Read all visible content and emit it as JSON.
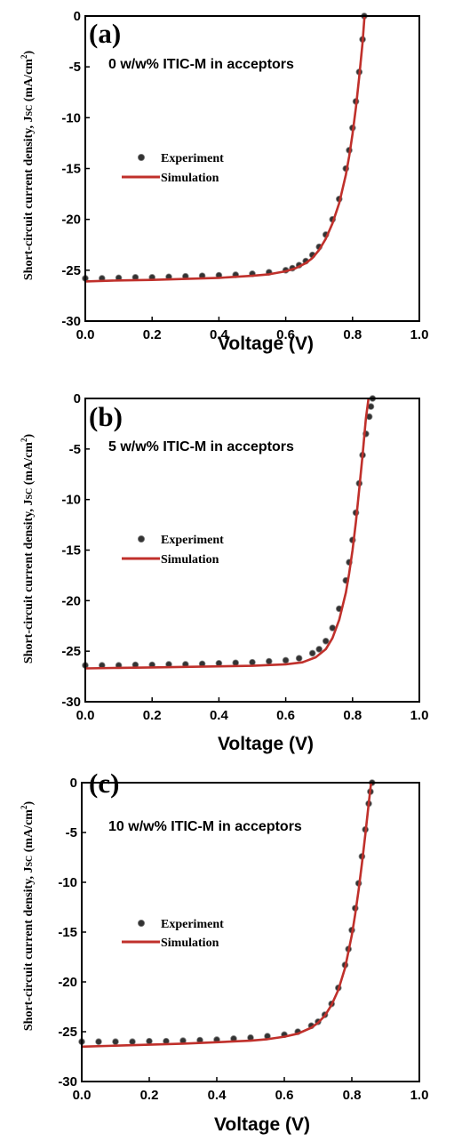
{
  "chart_data": [
    {
      "type": "line",
      "panel_label": "(a)",
      "annotation": "0 w/w% ITIC-M in acceptors",
      "xlabel": "Voltage (V)",
      "ylabel_main": "Short-circuit current density, J",
      "ylabel_sub": "SC",
      "ylabel_unit": " (mA/cm",
      "ylabel_sup": "2",
      "ylabel_close": ")",
      "xlim": [
        0.0,
        1.0
      ],
      "ylim": [
        -30,
        0
      ],
      "xticks": [
        "0.0",
        "0.2",
        "0.4",
        "0.6",
        "0.8",
        "1.0"
      ],
      "yticks": [
        "0",
        "-5",
        "-10",
        "-15",
        "-20",
        "-25",
        "-30"
      ],
      "legend_placement": "left-center",
      "series": [
        {
          "name": "Experiment",
          "style": "scatter",
          "color": "#333333",
          "x": [
            0.0,
            0.05,
            0.1,
            0.15,
            0.2,
            0.25,
            0.3,
            0.35,
            0.4,
            0.45,
            0.5,
            0.55,
            0.6,
            0.62,
            0.64,
            0.66,
            0.68,
            0.7,
            0.72,
            0.74,
            0.76,
            0.78,
            0.79,
            0.8,
            0.81,
            0.82,
            0.83,
            0.835
          ],
          "y": [
            -25.8,
            -25.8,
            -25.75,
            -25.7,
            -25.7,
            -25.65,
            -25.6,
            -25.55,
            -25.5,
            -25.45,
            -25.35,
            -25.2,
            -25.0,
            -24.8,
            -24.5,
            -24.1,
            -23.5,
            -22.7,
            -21.5,
            -20.0,
            -18.0,
            -15.0,
            -13.2,
            -11.0,
            -8.4,
            -5.5,
            -2.3,
            0.0
          ]
        },
        {
          "name": "Simulation",
          "style": "line",
          "color": "#c0302b",
          "x": [
            0.0,
            0.1,
            0.2,
            0.3,
            0.4,
            0.5,
            0.55,
            0.6,
            0.63,
            0.66,
            0.68,
            0.7,
            0.72,
            0.74,
            0.76,
            0.78,
            0.79,
            0.8,
            0.81,
            0.82,
            0.83,
            0.836
          ],
          "y": [
            -26.1,
            -26.0,
            -25.95,
            -25.85,
            -25.75,
            -25.55,
            -25.4,
            -25.1,
            -24.8,
            -24.3,
            -23.8,
            -23.0,
            -21.9,
            -20.4,
            -18.4,
            -15.6,
            -13.8,
            -11.6,
            -9.0,
            -6.0,
            -2.6,
            0.0
          ]
        }
      ]
    },
    {
      "type": "line",
      "panel_label": "(b)",
      "annotation": "5 w/w% ITIC-M in acceptors",
      "xlabel": "Voltage (V)",
      "ylabel_main": "Short-circuit current density, J",
      "ylabel_sub": "SC",
      "ylabel_unit": " (mA/cm",
      "ylabel_sup": "2",
      "ylabel_close": ")",
      "xlim": [
        0.0,
        1.0
      ],
      "ylim": [
        -30,
        0
      ],
      "xticks": [
        "0.0",
        "0.2",
        "0.4",
        "0.6",
        "0.8",
        "1.0"
      ],
      "yticks": [
        "0",
        "-5",
        "-10",
        "-15",
        "-20",
        "-25",
        "-30"
      ],
      "legend_placement": "left-center",
      "series": [
        {
          "name": "Experiment",
          "style": "scatter",
          "color": "#333333",
          "x": [
            0.0,
            0.05,
            0.1,
            0.15,
            0.2,
            0.25,
            0.3,
            0.35,
            0.4,
            0.45,
            0.5,
            0.55,
            0.6,
            0.64,
            0.68,
            0.7,
            0.72,
            0.74,
            0.76,
            0.78,
            0.79,
            0.8,
            0.81,
            0.82,
            0.83,
            0.84,
            0.85,
            0.855,
            0.86
          ],
          "y": [
            -26.4,
            -26.4,
            -26.4,
            -26.35,
            -26.35,
            -26.3,
            -26.3,
            -26.25,
            -26.2,
            -26.15,
            -26.1,
            -26.0,
            -25.9,
            -25.7,
            -25.2,
            -24.8,
            -24.0,
            -22.7,
            -20.8,
            -18.0,
            -16.2,
            -14.0,
            -11.3,
            -8.4,
            -5.6,
            -3.5,
            -1.8,
            -0.8,
            0.0
          ]
        },
        {
          "name": "Simulation",
          "style": "line",
          "color": "#c0302b",
          "x": [
            0.0,
            0.1,
            0.2,
            0.3,
            0.4,
            0.5,
            0.6,
            0.65,
            0.69,
            0.72,
            0.74,
            0.76,
            0.78,
            0.79,
            0.8,
            0.81,
            0.82,
            0.83,
            0.84,
            0.848
          ],
          "y": [
            -26.7,
            -26.65,
            -26.6,
            -26.55,
            -26.5,
            -26.45,
            -26.3,
            -26.1,
            -25.6,
            -24.8,
            -23.7,
            -21.9,
            -19.2,
            -17.3,
            -15.0,
            -12.2,
            -9.0,
            -5.6,
            -2.0,
            0.0
          ]
        }
      ]
    },
    {
      "type": "line",
      "panel_label": "(c)",
      "annotation": "10 w/w% ITIC-M in acceptors",
      "xlabel": "Voltage (V)",
      "ylabel_main": "Short-circuit current density, J",
      "ylabel_sub": "SC",
      "ylabel_unit": " (mA/cm",
      "ylabel_sup": "2",
      "ylabel_close": ")",
      "xlim": [
        0.0,
        1.0
      ],
      "ylim": [
        -30,
        0
      ],
      "xticks": [
        "0.0",
        "0.2",
        "0.4",
        "0.6",
        "0.8",
        "1.0"
      ],
      "yticks": [
        "0",
        "-5",
        "-10",
        "-15",
        "-20",
        "-25",
        "-30"
      ],
      "legend_placement": "left-center",
      "series": [
        {
          "name": "Experiment",
          "style": "scatter",
          "color": "#333333",
          "x": [
            0.0,
            0.05,
            0.1,
            0.15,
            0.2,
            0.25,
            0.3,
            0.35,
            0.4,
            0.45,
            0.5,
            0.55,
            0.6,
            0.64,
            0.68,
            0.7,
            0.72,
            0.74,
            0.76,
            0.78,
            0.79,
            0.8,
            0.81,
            0.82,
            0.83,
            0.84,
            0.85,
            0.855,
            0.86
          ],
          "y": [
            -26.0,
            -26.0,
            -26.0,
            -26.0,
            -25.95,
            -25.95,
            -25.9,
            -25.85,
            -25.8,
            -25.7,
            -25.6,
            -25.45,
            -25.3,
            -25.0,
            -24.4,
            -24.0,
            -23.3,
            -22.2,
            -20.6,
            -18.3,
            -16.7,
            -14.8,
            -12.6,
            -10.1,
            -7.4,
            -4.7,
            -2.1,
            -0.9,
            0.0
          ]
        },
        {
          "name": "Simulation",
          "style": "line",
          "color": "#c0302b",
          "x": [
            0.0,
            0.1,
            0.2,
            0.3,
            0.4,
            0.5,
            0.55,
            0.6,
            0.64,
            0.68,
            0.7,
            0.72,
            0.74,
            0.76,
            0.78,
            0.8,
            0.81,
            0.82,
            0.83,
            0.84,
            0.85,
            0.857
          ],
          "y": [
            -26.5,
            -26.4,
            -26.3,
            -26.2,
            -26.05,
            -25.9,
            -25.75,
            -25.5,
            -25.2,
            -24.6,
            -24.1,
            -23.4,
            -22.3,
            -20.8,
            -18.6,
            -15.3,
            -13.2,
            -10.8,
            -8.1,
            -5.2,
            -2.1,
            0.0
          ]
        }
      ]
    }
  ]
}
